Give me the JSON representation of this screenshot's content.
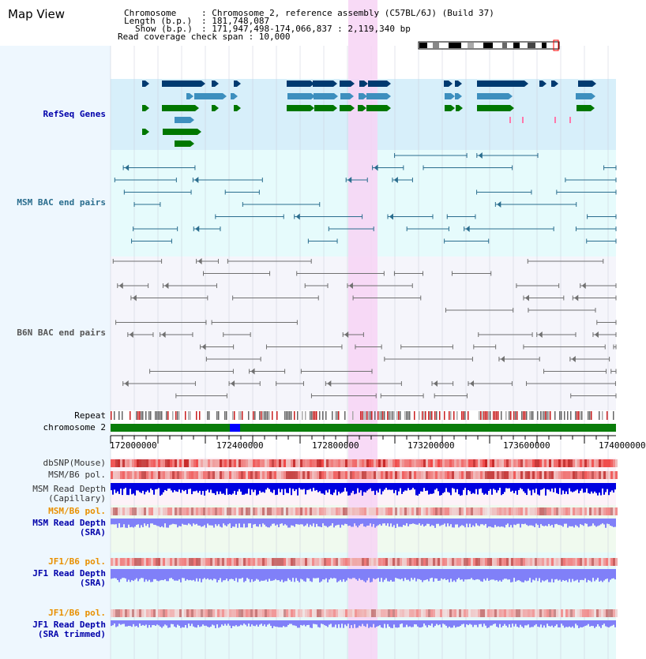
{
  "header": {
    "title": "Map View",
    "chromosome_key": "Chromosome",
    "chromosome_value": ": Chromosome 2, reference assembly (C57BL/6J) (Build 37)",
    "length_key": "Length (b.p.)",
    "length_value": ": 181,748,087",
    "show_key": "Show (b.p.)",
    "show_value": ": 171,947,498-174,066,837 : 2,119,340 bp",
    "coverage_text": "Read coverage check span : 10,000"
  },
  "tracks": {
    "refseq": "RefSeq Genes",
    "msm_bac": "MSM BAC end pairs",
    "b6n_bac": "B6N BAC end pairs",
    "repeat": "Repeat",
    "chromosome": "chromosome 2",
    "dbsnp": "dbSNP(Mouse)",
    "msm_b6_pol_1": "MSM/B6 pol.",
    "msm_depth_cap_1": "MSM Read Depth",
    "msm_depth_cap_2": "(Capillary)",
    "msm_b6_pol_2": "MSM/B6 pol.",
    "msm_depth_sra_1": "MSM Read Depth",
    "msm_depth_sra_2": "(SRA)",
    "jf1_pol_1": "JF1/B6 pol.",
    "jf1_depth_1": "JF1 Read Depth",
    "jf1_depth_2": "(SRA)",
    "jf1_pol_2": "JF1/B6 pol.",
    "jf1_trim_1": "JF1 Read Depth",
    "jf1_trim_2": "(SRA trimmed)"
  },
  "axis": {
    "ticks": [
      "172000000",
      "172400000",
      "172800000",
      "173200000",
      "173600000",
      "174000000"
    ]
  },
  "colors": {
    "gene_dark": "#003a70",
    "gene_mid": "#3d8fbe",
    "gene_green": "#007700",
    "bac_msm": "#2a6d8e",
    "bac_b6n": "#707070",
    "highlight": "#f7d3f5",
    "chrom_bar": "#0a7d0a",
    "chrom_mark": "#0000ff",
    "depth_dark": "#0000e0",
    "depth_light": "#8080f8"
  }
}
